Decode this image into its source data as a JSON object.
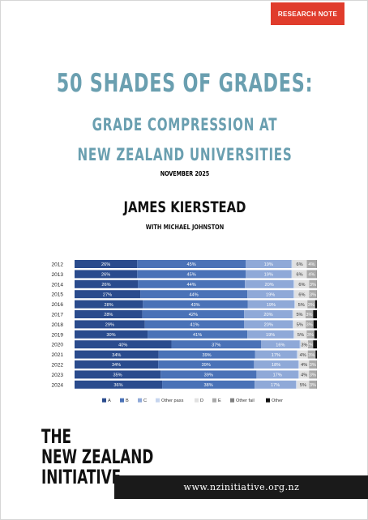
{
  "badge": "RESEARCH NOTE",
  "title": "50 SHADES OF GRADES:",
  "subtitle_line1": "GRADE COMPRESSION AT",
  "subtitle_line2": "NEW ZEALAND UNIVERSITIES",
  "date": "NOVEMBER 2025",
  "author": "JAMES KIERSTEAD",
  "coauthor": "WITH MICHAEL JOHNSTON",
  "logo": {
    "line1": "THE",
    "line2": "NEW ZEALAND",
    "line3": "INITIATIVE"
  },
  "url": "www.nzinitiative.org.nz",
  "colors": {
    "A": "#2a4b8d",
    "B": "#4a72b7",
    "C": "#8fa9d8",
    "Other pass": "#c6d5ee",
    "D": "#e1e1e1",
    "E": "#a9a9a9",
    "Other fail": "#808080",
    "Other": "#111111"
  },
  "chart_data": {
    "type": "bar",
    "orientation": "horizontal",
    "stacked": true,
    "normalized": true,
    "categories": [
      "2012",
      "2013",
      "2014",
      "2015",
      "2016",
      "2017",
      "2018",
      "2019",
      "2020",
      "2021",
      "2022",
      "2023",
      "2024"
    ],
    "series": [
      {
        "name": "A",
        "values": [
          26,
          26,
          26,
          27,
          28,
          28,
          29,
          30,
          40,
          34,
          34,
          35,
          36
        ],
        "labels": [
          "26%",
          "26%",
          "26%",
          "27%",
          "28%",
          "28%",
          "29%",
          "30%",
          "40%",
          "34%",
          "34%",
          "35%",
          "36%"
        ]
      },
      {
        "name": "B",
        "values": [
          45,
          45,
          44,
          44,
          43,
          42,
          41,
          41,
          37,
          39,
          39,
          39,
          38
        ],
        "labels": [
          "45%",
          "45%",
          "44%",
          "44%",
          "43%",
          "42%",
          "41%",
          "41%",
          "37%",
          "39%",
          "39%",
          "39%",
          "38%"
        ]
      },
      {
        "name": "C",
        "values": [
          19,
          19,
          20,
          19,
          19,
          20,
          20,
          19,
          16,
          17,
          18,
          17,
          17
        ],
        "labels": [
          "19%",
          "19%",
          "20%",
          "19%",
          "19%",
          "20%",
          "20%",
          "19%",
          "16%",
          "17%",
          "18%",
          "17%",
          "17%"
        ]
      },
      {
        "name": "Other pass",
        "values": [
          0.4,
          0.4,
          0.4,
          0.4,
          0.4,
          0.4,
          0.4,
          0.4,
          0.4,
          0.4,
          0.4,
          0.4,
          0.4
        ],
        "labels": [
          "",
          "",
          "",
          "",
          "",
          "",
          "",
          "",
          "",
          "",
          "",
          "",
          ""
        ]
      },
      {
        "name": "D",
        "values": [
          6,
          6,
          6,
          6,
          5,
          5,
          5,
          5,
          3,
          4,
          4,
          4,
          5
        ],
        "labels": [
          "6%",
          "6%",
          "6%",
          "6%",
          "5%",
          "5%",
          "5%",
          "5%",
          "3%",
          "4%",
          "4%",
          "4%",
          "5%"
        ]
      },
      {
        "name": "E",
        "values": [
          4,
          4,
          3,
          3,
          3,
          3,
          3,
          3,
          2,
          3,
          3,
          3,
          3
        ],
        "labels": [
          "4%",
          "4%",
          "3%",
          "3%",
          "3%",
          "3%",
          "3%",
          "3%",
          "2%",
          "3%",
          "3%",
          "3%",
          "3%"
        ]
      },
      {
        "name": "Other fail",
        "values": [
          0.2,
          0.2,
          0.2,
          0.2,
          0.2,
          0.2,
          0.2,
          0.2,
          0.2,
          0.2,
          0.2,
          0.2,
          0.2
        ],
        "labels": [
          "",
          "",
          "",
          "",
          "",
          "",
          "",
          "",
          "",
          "",
          "",
          "",
          ""
        ]
      },
      {
        "name": "Other",
        "values": [
          0,
          0,
          0,
          0,
          0.7,
          1.5,
          1.4,
          1,
          1.5,
          0.5,
          0,
          0,
          0
        ],
        "labels": [
          "",
          "",
          "",
          "",
          "",
          "",
          "",
          "",
          "",
          "",
          "",
          "",
          ""
        ]
      }
    ],
    "legend": [
      "A",
      "B",
      "C",
      "Other pass",
      "D",
      "E",
      "Other fail",
      "Other"
    ],
    "legend_position": "bottom",
    "title": "",
    "xlabel": "",
    "ylabel": ""
  }
}
